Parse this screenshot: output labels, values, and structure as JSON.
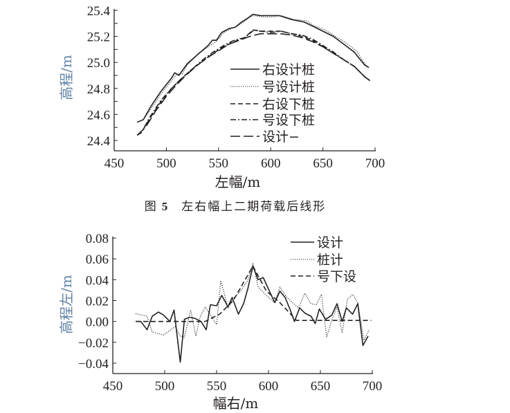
{
  "caption": {
    "prefix": "图",
    "number": "5",
    "text": "左右幅上二期荷载后线形"
  },
  "chart_data": [
    {
      "type": "line",
      "xlabel": "左幅/m",
      "ylabel": "高程/m",
      "xlim": [
        450,
        700
      ],
      "ylim": [
        24.4,
        25.4
      ],
      "xticks": [
        450,
        500,
        550,
        600,
        650,
        700
      ],
      "yticks": [
        "24.4",
        "24.6",
        "24.8",
        "25.0",
        "25.2",
        "25.4"
      ],
      "legend_position": "center-right",
      "series": [
        {
          "name": "右设计桩",
          "style": "solid",
          "x": [
            472,
            478,
            485,
            495,
            505,
            508,
            512,
            520,
            530,
            540,
            544,
            548,
            553,
            560,
            566,
            572,
            578,
            583,
            590,
            600,
            608,
            620,
            632,
            640,
            650,
            660,
            670,
            680,
            690,
            694
          ],
          "y": [
            24.54,
            24.56,
            24.66,
            24.78,
            24.88,
            24.92,
            24.9,
            24.99,
            25.06,
            25.13,
            25.17,
            25.17,
            25.23,
            25.26,
            25.27,
            25.31,
            25.34,
            25.37,
            25.36,
            25.36,
            25.36,
            25.33,
            25.31,
            25.28,
            25.24,
            25.2,
            25.14,
            25.08,
            24.98,
            24.96
          ]
        },
        {
          "name": "号设计桩",
          "style": "dotted",
          "x": [
            472,
            478,
            485,
            495,
            505,
            510,
            515,
            520,
            530,
            540,
            546,
            550,
            555,
            562,
            568,
            574,
            580,
            584,
            592,
            602,
            610,
            622,
            634,
            642,
            652,
            662,
            672,
            682,
            690,
            694
          ],
          "y": [
            24.54,
            24.56,
            24.64,
            24.76,
            24.86,
            24.91,
            24.91,
            24.98,
            25.06,
            25.12,
            25.15,
            25.18,
            25.23,
            25.26,
            25.28,
            25.31,
            25.35,
            25.36,
            25.35,
            25.35,
            25.36,
            25.33,
            25.32,
            25.28,
            25.25,
            25.2,
            25.15,
            25.09,
            24.99,
            24.96
          ]
        },
        {
          "name": "右设下桩",
          "style": "dashed",
          "x": [
            472,
            476,
            485,
            495,
            505,
            515,
            525,
            535,
            545,
            555,
            565,
            575,
            583,
            590,
            600,
            610,
            620,
            630,
            640,
            650,
            660,
            670,
            680,
            690,
            695
          ],
          "y": [
            24.44,
            24.46,
            24.58,
            24.7,
            24.8,
            24.88,
            24.95,
            25.01,
            25.07,
            25.12,
            25.16,
            25.19,
            25.25,
            25.24,
            25.24,
            25.24,
            25.22,
            25.2,
            25.17,
            25.12,
            25.07,
            25.02,
            24.97,
            24.89,
            24.86
          ]
        },
        {
          "name": "号设下桩",
          "style": "dashdot",
          "x": [
            472,
            476,
            485,
            495,
            505,
            515,
            525,
            535,
            545,
            555,
            565,
            575,
            584,
            590,
            600,
            610,
            620,
            630,
            640,
            650,
            660,
            670,
            680,
            690,
            695
          ],
          "y": [
            24.44,
            24.46,
            24.59,
            24.71,
            24.8,
            24.88,
            24.95,
            25.02,
            25.08,
            25.13,
            25.17,
            25.19,
            25.25,
            25.24,
            25.23,
            25.24,
            25.22,
            25.21,
            25.18,
            25.13,
            25.08,
            25.02,
            24.97,
            24.89,
            24.86
          ]
        },
        {
          "name": "设计−",
          "style": "longdash",
          "x": [
            472,
            480,
            490,
            500,
            510,
            520,
            530,
            540,
            550,
            560,
            570,
            580,
            590,
            600,
            610,
            620,
            630,
            640,
            650,
            660,
            670,
            680,
            690,
            695
          ],
          "y": [
            24.44,
            24.5,
            24.63,
            24.74,
            24.83,
            24.91,
            24.98,
            25.04,
            25.09,
            25.14,
            25.17,
            25.2,
            25.22,
            25.22,
            25.22,
            25.21,
            25.19,
            25.16,
            25.12,
            25.07,
            25.02,
            24.97,
            24.89,
            24.86
          ]
        }
      ]
    },
    {
      "type": "line",
      "xlabel": "幅右/m",
      "ylabel": "高程左/m",
      "xlim": [
        450,
        700
      ],
      "ylim": [
        -0.04,
        0.08
      ],
      "xticks": [
        450,
        500,
        550,
        600,
        650,
        700
      ],
      "yticks": [
        "−0.04",
        "−0.02",
        "0.00",
        "0.02",
        "0.04",
        "0.06",
        "0.08"
      ],
      "legend_position": "top-right",
      "series": [
        {
          "name": "设计",
          "style": "solid",
          "x": [
            472,
            477,
            483,
            488,
            494,
            499,
            505,
            509,
            515,
            519,
            524,
            529,
            535,
            540,
            544,
            550,
            555,
            561,
            565,
            571,
            576,
            580,
            585,
            590,
            595,
            600,
            606,
            611,
            616,
            621,
            625,
            630,
            635,
            641,
            645,
            649,
            655,
            661,
            666,
            671,
            675,
            681,
            686,
            691,
            696
          ],
          "y": [
            0,
            0,
            -0.008,
            0.005,
            0.009,
            0.006,
            0,
            0.011,
            -0.039,
            0.002,
            0.004,
            0.003,
            0,
            -0.008,
            0.016,
            0.015,
            0.025,
            0.014,
            0.023,
            0.007,
            0.017,
            0.031,
            0.053,
            0.04,
            0.042,
            0.031,
            0.018,
            0.029,
            0.023,
            0.011,
            0,
            0.013,
            0.008,
            0.005,
            -0.002,
            0.012,
            0.002,
            0.006,
            0.017,
            0,
            0.013,
            0.007,
            0.017,
            -0.023,
            -0.014
          ]
        },
        {
          "name": "桩计",
          "style": "dotted",
          "x": [
            472,
            483,
            488,
            499,
            510,
            515,
            519,
            525,
            530,
            534,
            539,
            550,
            554,
            561,
            566,
            573,
            580,
            585,
            590,
            598,
            606,
            611,
            617,
            623,
            629,
            635,
            641,
            646,
            651,
            656,
            661,
            666,
            671,
            676,
            681,
            686,
            692,
            697
          ],
          "y": [
            0.0075,
            0.005,
            -0.01,
            -0.013,
            -0.005,
            -0.014,
            -0.015,
            0.011,
            -0.014,
            0.004,
            0.014,
            -0.003,
            0.039,
            0.013,
            0.022,
            0.029,
            0.039,
            0.056,
            0.033,
            0.025,
            0.018,
            0.033,
            0.024,
            0.018,
            0.013,
            0.027,
            0.017,
            0.016,
            0.026,
            -0.015,
            0.001,
            0.014,
            -0.011,
            0.021,
            0.026,
            0.018,
            -0.018,
            -0.008
          ]
        },
        {
          "name": "号下设",
          "style": "dashed",
          "x": [
            472,
            539,
            553,
            566,
            585,
            598,
            611,
            627,
            699
          ],
          "y": [
            0,
            0,
            0.007,
            0.02,
            0.053,
            0.029,
            0.018,
            0.001,
            0.001
          ]
        }
      ]
    }
  ]
}
